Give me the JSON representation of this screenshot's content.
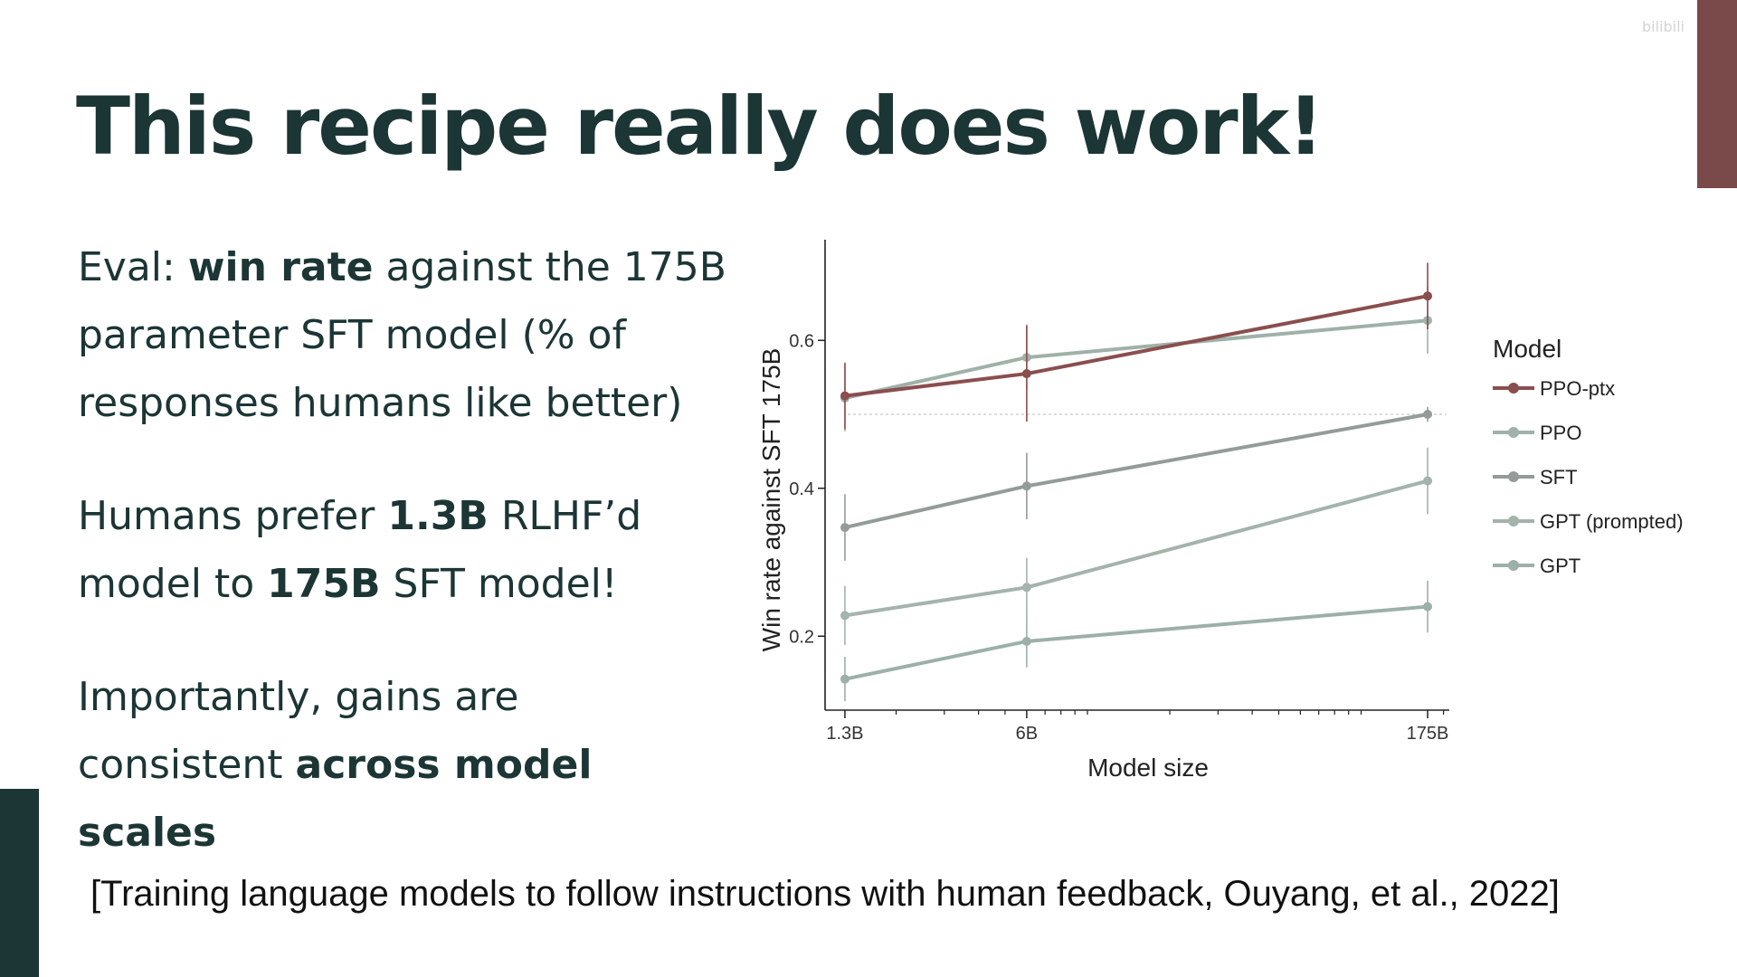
{
  "slide": {
    "title": "This recipe really does work!",
    "bullets": [
      [
        {
          "text": "Eval: ",
          "bold": false
        },
        {
          "text": "win rate",
          "bold": true
        },
        {
          "text": " against the 175B parameter SFT model (% of responses humans like better)",
          "bold": false
        }
      ],
      [
        {
          "text": "Humans prefer ",
          "bold": false
        },
        {
          "text": "1.3B",
          "bold": true
        },
        {
          "text": " RLHF’d model to ",
          "bold": false
        },
        {
          "text": "175B",
          "bold": true
        },
        {
          "text": " SFT model!",
          "bold": false
        }
      ],
      [
        {
          "text": "Importantly, gains are consistent ",
          "bold": false
        },
        {
          "text": "across model scales",
          "bold": true
        }
      ]
    ],
    "citation": "[Training language models to follow instructions with human feedback, Ouyang, et al., 2022]",
    "accent_colors": {
      "right_bar": "#7a4a4a",
      "left_bar": "#1c3535"
    }
  },
  "chart_data": {
    "type": "line",
    "xlabel": "Model size",
    "ylabel": "Win rate against SFT 175B",
    "x_scale": "log",
    "x_ticks": [
      {
        "label": "1.3B",
        "value": 1.3
      },
      {
        "label": "6B",
        "value": 6
      },
      {
        "label": "175B",
        "value": 175
      }
    ],
    "x_minor_ticks": [
      2,
      3,
      4,
      5,
      7,
      8,
      9,
      10,
      20,
      30,
      40,
      50,
      60,
      70,
      80,
      90,
      100,
      200
    ],
    "xlim": [
      1.1,
      210
    ],
    "ylim": [
      0.1,
      0.73
    ],
    "y_ticks": [
      0.2,
      0.4,
      0.6
    ],
    "reference_line": 0.5,
    "grid": false,
    "legend": {
      "title": "Model",
      "position": "right"
    },
    "x": [
      1.3,
      6,
      175
    ],
    "series": [
      {
        "name": "PPO-ptx",
        "color": "#8a4e4e",
        "values": [
          0.525,
          0.555,
          0.66
        ],
        "errors": [
          0.045,
          0.065,
          0.045
        ]
      },
      {
        "name": "PPO",
        "color": "#9fb1a8",
        "values": [
          0.522,
          0.577,
          0.627
        ],
        "errors": [
          0.045,
          0.045,
          0.045
        ]
      },
      {
        "name": "SFT",
        "color": "#949c98",
        "values": [
          0.347,
          0.403,
          0.5
        ],
        "errors": [
          0.045,
          0.045,
          0.01
        ]
      },
      {
        "name": "GPT (prompted)",
        "color": "#a4b3ac",
        "values": [
          0.228,
          0.266,
          0.41
        ],
        "errors": [
          0.04,
          0.04,
          0.045
        ]
      },
      {
        "name": "GPT",
        "color": "#9cb0a8",
        "values": [
          0.142,
          0.193,
          0.24
        ],
        "errors": [
          0.03,
          0.035,
          0.035
        ]
      }
    ]
  }
}
